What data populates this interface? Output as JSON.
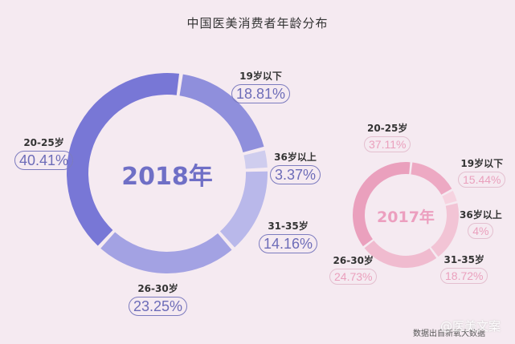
{
  "title": "中国医美消费者年龄分布",
  "chart_data": [
    {
      "type": "pie",
      "variant": "donut",
      "title": "2018年",
      "categories": [
        "19岁以下",
        "36岁以上",
        "31-35岁",
        "26-30岁",
        "20-25岁"
      ],
      "values": [
        18.81,
        3.37,
        14.16,
        23.25,
        40.41
      ],
      "unit": "%",
      "labels": [
        "18.81%",
        "3.37%",
        "14.16%",
        "23.25%",
        "40.41%"
      ],
      "colors": [
        "#8f8fdc",
        "#cfcdee",
        "#b9b8ea",
        "#a3a2e3",
        "#7877d6"
      ]
    },
    {
      "type": "pie",
      "variant": "donut",
      "title": "2017年",
      "categories": [
        "19岁以下",
        "36岁以上",
        "31-35岁",
        "26-30岁",
        "20-25岁"
      ],
      "values": [
        15.44,
        4,
        18.72,
        24.73,
        37.11
      ],
      "unit": "%",
      "labels": [
        "15.44%",
        "4%",
        "18.72%",
        "24.73%",
        "37.11%"
      ],
      "colors": [
        "#eda9c3",
        "#f6d3e0",
        "#f2c4d5",
        "#f0bbcf",
        "#eaa0bd"
      ]
    }
  ],
  "labels2018": {
    "under19": {
      "age": "19岁以下",
      "pct": "18.81%"
    },
    "over36": {
      "age": "36岁以上",
      "pct": "3.37%"
    },
    "a31_35": {
      "age": "31-35岁",
      "pct": "14.16%"
    },
    "a26_30": {
      "age": "26-30岁",
      "pct": "23.25%"
    },
    "a20_25": {
      "age": "20-25岁",
      "pct": "40.41%"
    }
  },
  "labels2017": {
    "under19": {
      "age": "19岁以下",
      "pct": "15.44%"
    },
    "over36": {
      "age": "36岁以上",
      "pct": "4%"
    },
    "a31_35": {
      "age": "31-35岁",
      "pct": "18.72%"
    },
    "a26_30": {
      "age": "26-30岁",
      "pct": "24.73%"
    },
    "a20_25": {
      "age": "20-25岁",
      "pct": "37.11%"
    }
  },
  "center2018": "2018年",
  "center2017": "2017年",
  "source": "数据出自新氧大数据",
  "watermark": "@医美文案"
}
